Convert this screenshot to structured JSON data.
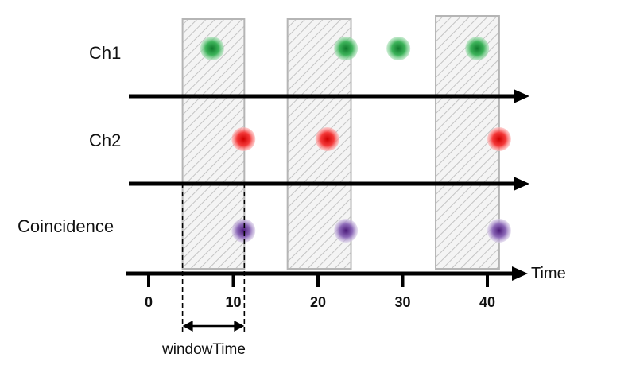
{
  "channels": [
    {
      "label": "Ch1",
      "color": "#2eaa4a"
    },
    {
      "label": "Ch2",
      "color": "#ee1c1c"
    },
    {
      "label": "Coincidence",
      "color": "#6a3d9a"
    }
  ],
  "axis": {
    "label": "Time",
    "ticks": [
      {
        "value": 0,
        "label": "0"
      },
      {
        "value": 10,
        "label": "10"
      },
      {
        "value": 20,
        "label": "20"
      },
      {
        "value": 30,
        "label": "30"
      },
      {
        "value": 40,
        "label": "40"
      }
    ]
  },
  "windows": [
    {
      "start": 4,
      "end": 11.3
    },
    {
      "start": 16.4,
      "end": 23.9
    },
    {
      "start": 33.9,
      "end": 41.4
    }
  ],
  "window_label": "windowTime",
  "events": {
    "ch1": [
      7.5,
      23.3,
      29.5,
      38.8
    ],
    "ch2": [
      11.2,
      21.1,
      41.4
    ],
    "coincidence": [
      11.2,
      23.3,
      41.4
    ]
  },
  "colors": {
    "window_stroke": "#b5b5b5",
    "hatch": "#c8c8c8",
    "window_fill": "#f2f2f2",
    "axis": "#000000"
  }
}
